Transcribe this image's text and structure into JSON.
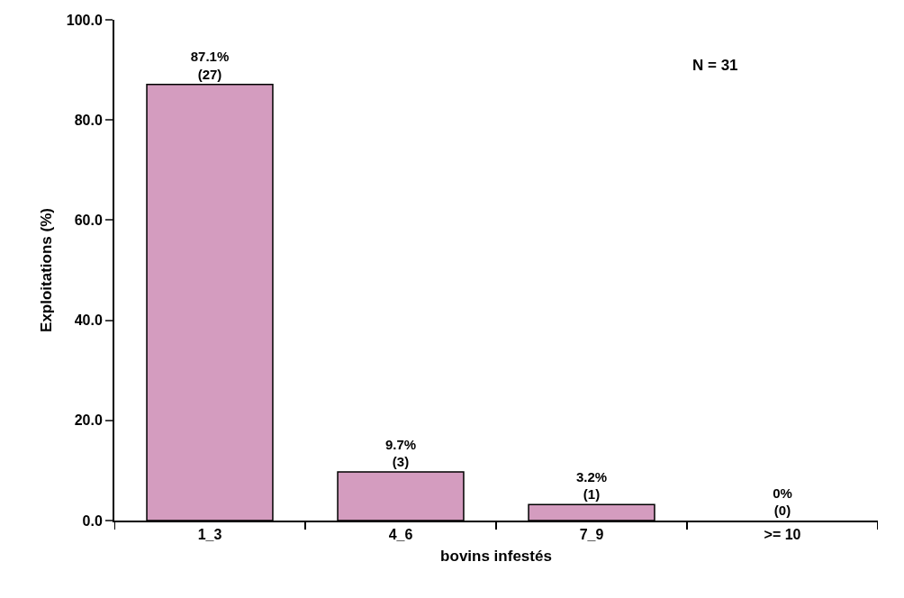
{
  "chart_data": {
    "type": "bar",
    "xlabel": "bovins infestés",
    "ylabel": "Exploitations (%)",
    "categories": [
      "1_3",
      "4_6",
      "7_9",
      ">= 10"
    ],
    "values": [
      87.1,
      9.7,
      3.2,
      0
    ],
    "value_labels": [
      "87.1%\n(27)",
      "9.7%\n(3)",
      "3.2%\n(1)",
      "0%\n(0)"
    ],
    "color": "#d49cbf",
    "ylim": [
      0,
      100
    ],
    "yticks": [
      {
        "value": 0,
        "label": "0.0"
      },
      {
        "value": 20,
        "label": "20.0"
      },
      {
        "value": 40,
        "label": "40.0"
      },
      {
        "value": 60,
        "label": "60.0"
      },
      {
        "value": 80,
        "label": "80.0"
      },
      {
        "value": 100,
        "label": "100.0"
      }
    ],
    "grid": false,
    "annotations": [
      "N = 31"
    ]
  }
}
